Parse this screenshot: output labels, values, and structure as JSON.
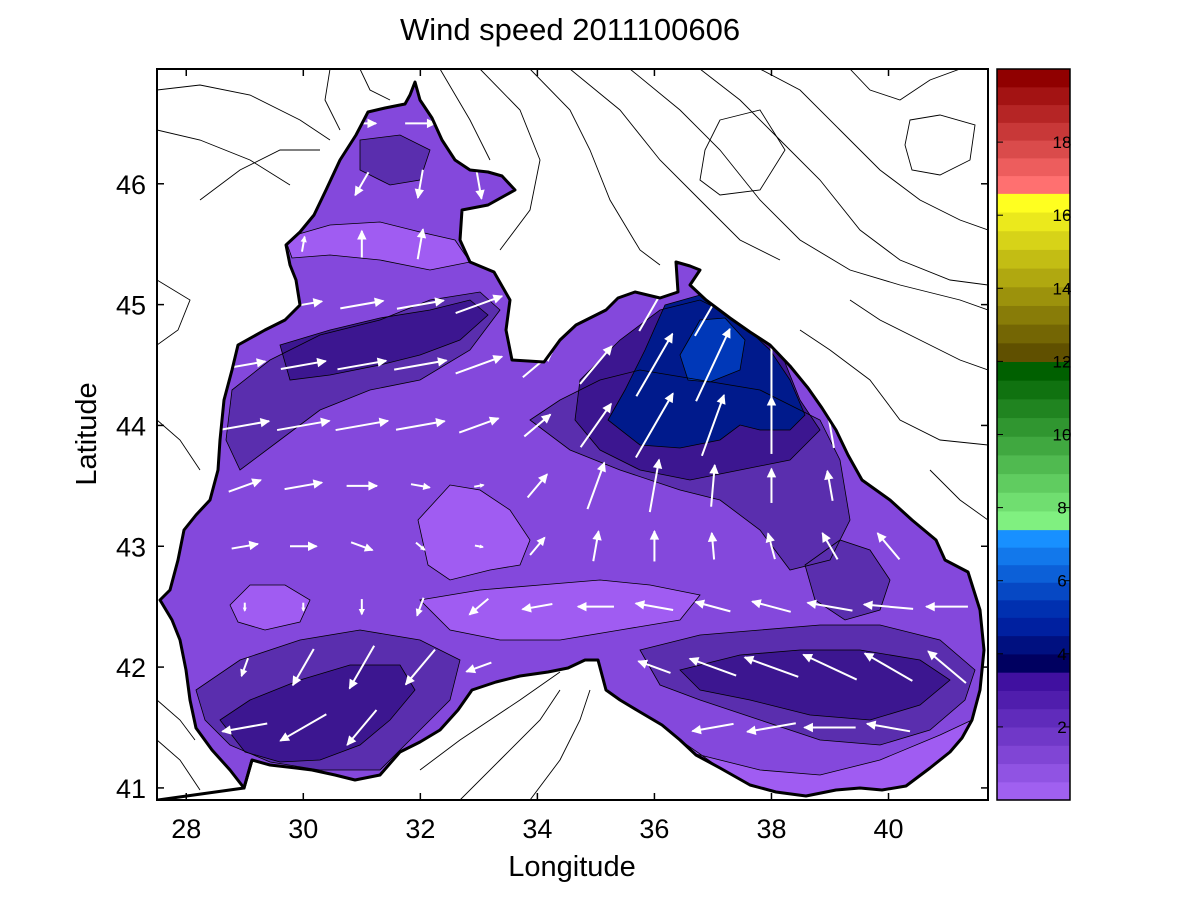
{
  "chart_data": {
    "type": "contour_quiver_map",
    "title": "Wind speed 2011100606",
    "xlabel": "Longitude",
    "ylabel": "Latitude",
    "xlim": [
      27.5,
      41.7
    ],
    "ylim": [
      40.9,
      46.95
    ],
    "xticks": [
      28,
      30,
      32,
      34,
      36,
      38,
      40
    ],
    "yticks": [
      41,
      42,
      43,
      44,
      45,
      46
    ],
    "colorbar": {
      "range": [
        0,
        20
      ],
      "ticks": [
        2,
        4,
        6,
        8,
        10,
        12,
        14,
        16,
        18
      ],
      "segments": [
        {
          "from": 0,
          "to": 3.5,
          "color_low": "#a060f0",
          "color_high": "#4010a0"
        },
        {
          "from": 3.5,
          "to": 5.0,
          "color_low": "#000060",
          "color_high": "#0020a0"
        },
        {
          "from": 5.0,
          "to": 7.4,
          "color_low": "#0030b0",
          "color_high": "#1890ff"
        },
        {
          "from": 7.4,
          "to": 12.0,
          "color_low": "#80f080",
          "color_high": "#006000"
        },
        {
          "from": 12.0,
          "to": 16.6,
          "color_low": "#605000",
          "color_high": "#ffff20"
        },
        {
          "from": 16.6,
          "to": 20.0,
          "color_low": "#ff7070",
          "color_high": "#900000"
        }
      ]
    },
    "fill_colors": {
      "light": "#a05cf2",
      "mid": "#8448dc",
      "dark": "#5a2eae",
      "darker": "#3c1690",
      "core": "#001a8c",
      "core_inner": "#0038b8"
    },
    "wind_field_grid": {
      "lat": [
        46.5,
        46.0,
        45.5,
        45.0,
        44.5,
        44.0,
        43.5,
        43.0,
        42.5,
        42.0,
        41.5
      ],
      "lon": [
        28.0,
        29.0,
        30.0,
        31.0,
        32.0,
        33.0,
        34.0,
        35.0,
        36.0,
        37.0,
        38.0,
        39.0,
        40.0,
        41.0
      ],
      "speed_m_s": [
        [
          null,
          null,
          null,
          1.5,
          1.6,
          null,
          null,
          null,
          null,
          null,
          null,
          null,
          null,
          null
        ],
        [
          null,
          null,
          1.2,
          1.4,
          1.5,
          1.6,
          null,
          null,
          null,
          null,
          null,
          null,
          null,
          null
        ],
        [
          null,
          null,
          0.8,
          1.4,
          1.6,
          1.7,
          null,
          null,
          null,
          null,
          null,
          null,
          null,
          null
        ],
        [
          null,
          null,
          2.0,
          2.3,
          2.5,
          2.6,
          null,
          null,
          3.2,
          3.8,
          null,
          null,
          null,
          null
        ],
        [
          null,
          2.2,
          2.4,
          2.6,
          2.8,
          2.6,
          2.0,
          2.6,
          3.8,
          4.2,
          3.6,
          null,
          null,
          null
        ],
        [
          null,
          2.6,
          2.8,
          2.8,
          2.6,
          2.2,
          1.8,
          2.8,
          3.9,
          3.4,
          3.0,
          2.4,
          null,
          null
        ],
        [
          null,
          1.8,
          2.0,
          1.6,
          1.0,
          0.5,
          1.6,
          2.6,
          2.8,
          2.2,
          1.8,
          1.6,
          null,
          null
        ],
        [
          1.2,
          1.4,
          1.4,
          1.2,
          0.6,
          0.4,
          1.2,
          1.6,
          1.6,
          1.4,
          1.4,
          1.6,
          1.8,
          null
        ],
        [
          0.6,
          0.4,
          0.3,
          0.8,
          1.0,
          1.3,
          1.6,
          1.9,
          2.0,
          1.9,
          2.1,
          2.4,
          2.6,
          2.2
        ],
        [
          null,
          1.0,
          2.2,
          2.6,
          2.4,
          1.4,
          null,
          null,
          1.8,
          2.6,
          3.0,
          3.1,
          2.9,
          2.6
        ],
        [
          null,
          2.4,
          2.8,
          2.4,
          null,
          null,
          null,
          null,
          null,
          2.2,
          2.6,
          2.7,
          2.3,
          null
        ]
      ],
      "direction_deg_toward": [
        [
          null,
          null,
          null,
          90,
          90,
          null,
          null,
          null,
          null,
          null,
          null,
          null,
          null,
          null
        ],
        [
          null,
          null,
          200,
          210,
          190,
          170,
          null,
          null,
          null,
          null,
          null,
          null,
          null,
          null
        ],
        [
          null,
          null,
          10,
          0,
          10,
          30,
          null,
          null,
          null,
          null,
          null,
          null,
          null,
          null
        ],
        [
          null,
          null,
          80,
          80,
          80,
          70,
          null,
          null,
          30,
          30,
          null,
          null,
          null,
          null
        ],
        [
          null,
          80,
          80,
          80,
          80,
          70,
          50,
          40,
          30,
          25,
          0,
          null,
          null,
          null
        ],
        [
          null,
          80,
          80,
          80,
          80,
          70,
          50,
          35,
          30,
          20,
          0,
          350,
          null,
          null
        ],
        [
          null,
          70,
          80,
          90,
          100,
          80,
          40,
          20,
          10,
          5,
          0,
          350,
          null,
          null
        ],
        [
          null,
          80,
          90,
          110,
          130,
          100,
          40,
          10,
          0,
          355,
          345,
          330,
          320,
          null
        ],
        [
          null,
          180,
          180,
          180,
          200,
          230,
          260,
          270,
          280,
          285,
          285,
          280,
          275,
          270
        ],
        [
          null,
          200,
          210,
          210,
          220,
          250,
          null,
          null,
          290,
          290,
          290,
          295,
          300,
          310
        ],
        [
          null,
          260,
          240,
          220,
          null,
          null,
          null,
          null,
          null,
          260,
          260,
          270,
          280,
          null
        ]
      ]
    },
    "gridlines": false,
    "legend": "colorbar-right"
  }
}
